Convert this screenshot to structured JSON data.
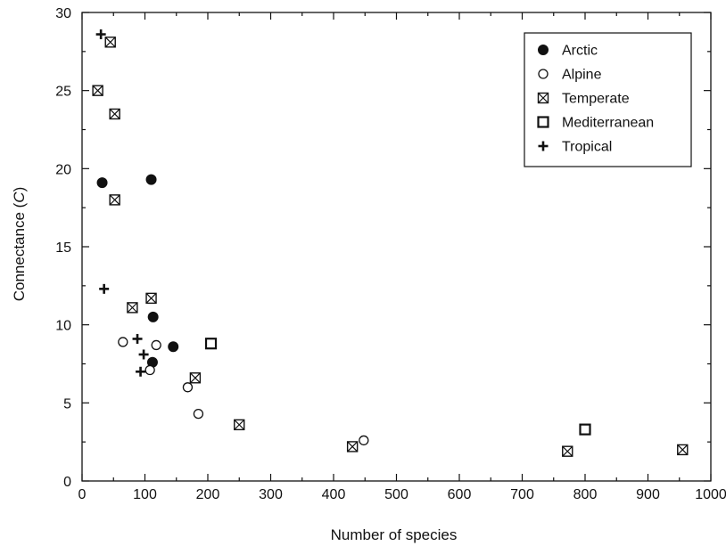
{
  "chart_data": {
    "type": "scatter",
    "title": "",
    "xlabel": "Number of species",
    "ylabel_main": "Connectance (",
    "ylabel_italic": "C",
    "ylabel_end": ")",
    "xlim": [
      0,
      1000
    ],
    "ylim": [
      0,
      30
    ],
    "xticks": [
      0,
      100,
      200,
      300,
      400,
      500,
      600,
      700,
      800,
      900,
      1000
    ],
    "yticks": [
      0,
      5,
      10,
      15,
      20,
      25,
      30
    ],
    "grid": false,
    "legend_position": "top-right",
    "series": [
      {
        "name": "Arctic",
        "marker": "filled-circle",
        "points": [
          [
            32,
            19.1
          ],
          [
            110,
            19.3
          ],
          [
            113,
            10.5
          ],
          [
            145,
            8.6
          ],
          [
            112,
            7.6
          ]
        ]
      },
      {
        "name": "Alpine",
        "marker": "open-circle",
        "points": [
          [
            65,
            8.9
          ],
          [
            118,
            8.7
          ],
          [
            108,
            7.1
          ],
          [
            168,
            6.0
          ],
          [
            185,
            4.3
          ],
          [
            448,
            2.6
          ]
        ]
      },
      {
        "name": "Temperate",
        "marker": "crossed-square",
        "points": [
          [
            45,
            28.1
          ],
          [
            25,
            25.0
          ],
          [
            52,
            23.5
          ],
          [
            52,
            18.0
          ],
          [
            110,
            11.7
          ],
          [
            80,
            11.1
          ],
          [
            180,
            6.6
          ],
          [
            250,
            3.6
          ],
          [
            430,
            2.2
          ],
          [
            772,
            1.9
          ],
          [
            955,
            2.0
          ]
        ]
      },
      {
        "name": "Mediterranean",
        "marker": "open-square",
        "points": [
          [
            205,
            8.8
          ],
          [
            800,
            3.3
          ]
        ]
      },
      {
        "name": "Tropical",
        "marker": "plus",
        "points": [
          [
            30,
            28.6
          ],
          [
            35,
            12.3
          ],
          [
            88,
            9.1
          ],
          [
            98,
            8.1
          ],
          [
            93,
            7.0
          ]
        ]
      }
    ]
  }
}
